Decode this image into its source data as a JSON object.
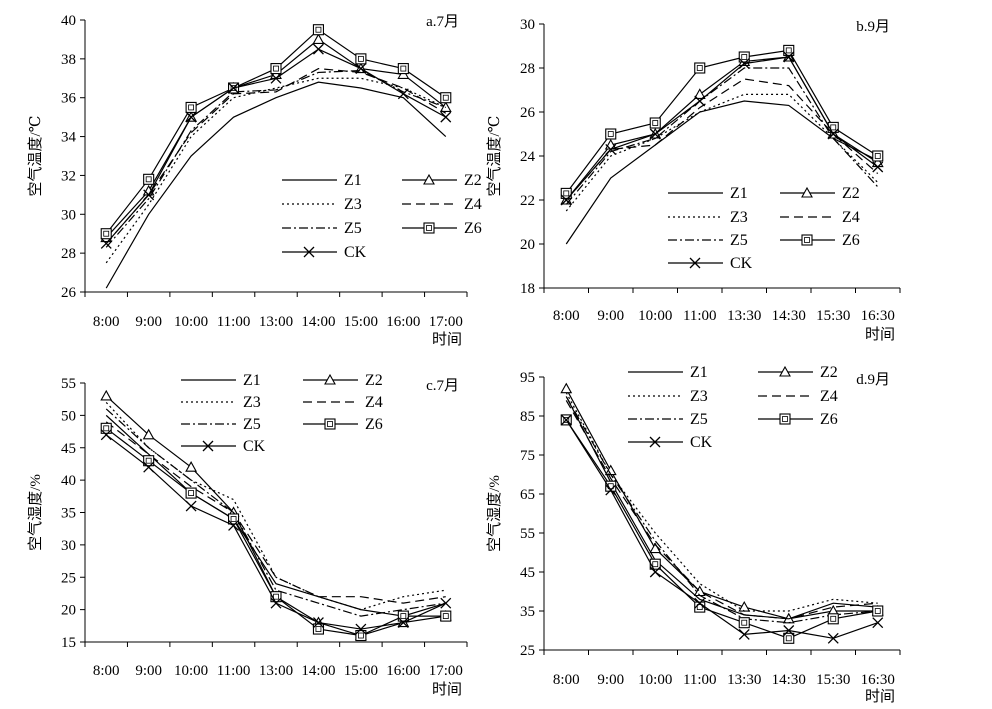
{
  "figure": {
    "x_caption": "时间"
  },
  "chart_data": [
    {
      "panel": "a.7月",
      "type": "line",
      "ylabel": "空气温度/℃",
      "xlabel": "时间",
      "ylim": [
        26,
        40
      ],
      "yticks": [
        26,
        28,
        30,
        32,
        34,
        36,
        38,
        40
      ],
      "categories": [
        "8:00",
        "9:00",
        "10:00",
        "11:00",
        "13:00",
        "14:00",
        "15:00",
        "16:00",
        "17:00"
      ],
      "legend_position": "bottom-right",
      "series": [
        {
          "name": "Z1",
          "values": [
            26.2,
            30,
            33,
            35,
            36,
            36.8,
            36.5,
            36,
            34
          ]
        },
        {
          "name": "Z2",
          "values": [
            28.8,
            31.2,
            35,
            36.5,
            37.2,
            39,
            37.5,
            37.2,
            35.5
          ]
        },
        {
          "name": "Z3",
          "values": [
            27.5,
            30.5,
            34,
            36,
            36.5,
            37,
            37,
            36.5,
            35.5
          ]
        },
        {
          "name": "Z4",
          "values": [
            28.5,
            31,
            34.2,
            36.2,
            36.3,
            37.5,
            37.3,
            36.5,
            35.2
          ]
        },
        {
          "name": "Z5",
          "values": [
            28.3,
            30.8,
            34.3,
            36.3,
            36.4,
            37.3,
            37.4,
            36.3,
            35.5
          ]
        },
        {
          "name": "Z6",
          "values": [
            29,
            31.8,
            35.5,
            36.5,
            37.5,
            39.5,
            38,
            37.5,
            36
          ]
        },
        {
          "name": "CK",
          "values": [
            28.5,
            31,
            35,
            36.5,
            37,
            38.5,
            37.5,
            36.2,
            35
          ]
        }
      ]
    },
    {
      "panel": "b.9月",
      "type": "line",
      "ylabel": "空气温度/℃",
      "xlabel": "时间",
      "ylim": [
        18,
        30
      ],
      "yticks": [
        18,
        20,
        22,
        24,
        26,
        28,
        30
      ],
      "categories": [
        "8:00",
        "9:00",
        "10:00",
        "11:00",
        "13:30",
        "14:30",
        "15:30",
        "16:30"
      ],
      "legend_position": "bottom-right",
      "series": [
        {
          "name": "Z1",
          "values": [
            20,
            23,
            24.5,
            26,
            26.5,
            26.3,
            24.8,
            23.8
          ]
        },
        {
          "name": "Z2",
          "values": [
            22,
            24.5,
            25,
            26.8,
            28.3,
            28.5,
            25,
            23.7
          ]
        },
        {
          "name": "Z3",
          "values": [
            21.5,
            24,
            24.8,
            26,
            26.8,
            26.8,
            24.8,
            22.8
          ]
        },
        {
          "name": "Z4",
          "values": [
            22,
            24.3,
            24.5,
            26.2,
            27.5,
            27.2,
            25,
            23.2
          ]
        },
        {
          "name": "Z5",
          "values": [
            21.8,
            24.2,
            24.8,
            26.5,
            28,
            28,
            24.8,
            22.6
          ]
        },
        {
          "name": "Z6",
          "values": [
            22.3,
            25,
            25.5,
            28,
            28.5,
            28.8,
            25.3,
            24
          ]
        },
        {
          "name": "CK",
          "values": [
            22,
            24.3,
            25,
            26.5,
            28.2,
            28.5,
            25,
            23.5
          ]
        }
      ]
    },
    {
      "panel": "c.7月",
      "type": "line",
      "ylabel": "空气湿度/%",
      "xlabel": "时间",
      "ylim": [
        15,
        55
      ],
      "yticks": [
        15,
        20,
        25,
        30,
        35,
        40,
        45,
        50,
        55
      ],
      "categories": [
        "8:00",
        "9:00",
        "10:00",
        "11:00",
        "13:00",
        "14:00",
        "15:00",
        "16:00",
        "17:00"
      ],
      "legend_position": "top",
      "series": [
        {
          "name": "Z1",
          "values": [
            50,
            44,
            38,
            34,
            24,
            22,
            20,
            19,
            21
          ]
        },
        {
          "name": "Z2",
          "values": [
            53,
            47,
            42,
            35,
            22,
            18,
            16,
            18,
            19
          ]
        },
        {
          "name": "Z3",
          "values": [
            52,
            45,
            40,
            37,
            25,
            22,
            20,
            22,
            23
          ]
        },
        {
          "name": "Z4",
          "values": [
            49,
            44,
            39,
            35,
            25,
            22,
            22,
            21,
            22
          ]
        },
        {
          "name": "Z5",
          "values": [
            51,
            45,
            40,
            35,
            23,
            21,
            19,
            20,
            21
          ]
        },
        {
          "name": "Z6",
          "values": [
            48,
            43,
            38,
            34,
            22,
            17,
            16,
            19,
            19
          ]
        },
        {
          "name": "CK",
          "values": [
            47,
            42,
            36,
            33,
            21,
            18,
            17,
            18,
            21
          ]
        }
      ]
    },
    {
      "panel": "d.9月",
      "type": "line",
      "ylabel": "空气湿度/%",
      "xlabel": "时间",
      "ylim": [
        25,
        95
      ],
      "yticks": [
        25,
        35,
        45,
        55,
        65,
        75,
        85,
        95
      ],
      "categories": [
        "8:00",
        "9:00",
        "10:00",
        "11:00",
        "13:30",
        "14:30",
        "15:30",
        "16:30"
      ],
      "legend_position": "top",
      "series": [
        {
          "name": "Z1",
          "values": [
            90,
            68,
            48,
            38,
            34,
            33,
            37,
            36
          ]
        },
        {
          "name": "Z2",
          "values": [
            92,
            71,
            51,
            40,
            36,
            33,
            35,
            35
          ]
        },
        {
          "name": "Z3",
          "values": [
            91,
            70,
            55,
            42,
            35,
            35,
            38,
            37
          ]
        },
        {
          "name": "Z4",
          "values": [
            89,
            69,
            52,
            40,
            34,
            33,
            36,
            37
          ]
        },
        {
          "name": "Z5",
          "values": [
            90,
            70,
            53,
            39,
            33,
            32,
            34,
            35
          ]
        },
        {
          "name": "Z6",
          "values": [
            84,
            67,
            47,
            36,
            32,
            28,
            33,
            35
          ]
        },
        {
          "name": "CK",
          "values": [
            84,
            66,
            45,
            37,
            29,
            30,
            28,
            32
          ]
        }
      ]
    }
  ]
}
